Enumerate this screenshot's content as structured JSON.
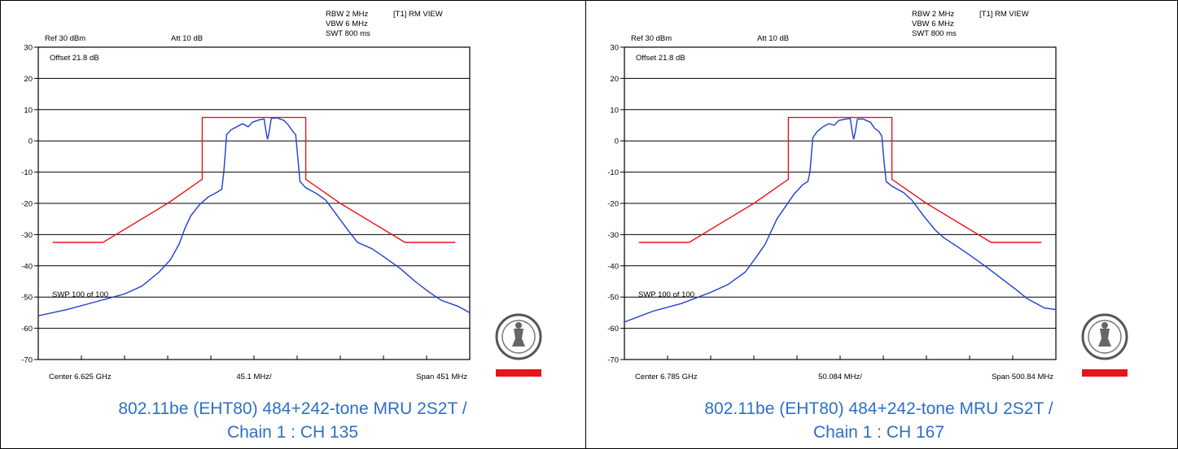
{
  "chart_data": [
    {
      "type": "line",
      "header": {
        "rbw": "RBW 2 MHz",
        "vbw": "VBW 6 MHz",
        "swt": "SWT 800 ms",
        "trace": "[T1] RM VIEW",
        "ref": "Ref 30 dBm",
        "att": "Att  10 dB",
        "offset": "Offset 21.8 dB",
        "sweep": "SWP 100 of 100"
      },
      "x_labels": {
        "left": "Center 6.625 GHz",
        "mid": "45.1 MHz/",
        "right": "Span 451 MHz"
      },
      "y_ticks": [
        "30",
        "20",
        "10",
        "0",
        "-10",
        "-20",
        "-30",
        "-40",
        "-50",
        "-60",
        "-70"
      ],
      "ylim": [
        -70,
        30
      ],
      "x_divisions": 10,
      "grid": true,
      "series": [
        {
          "color": "#e8141a",
          "points": [
            [
              0,
              -32.5
            ],
            [
              1.75,
              -32.5
            ],
            [
              4.0,
              -20.0
            ],
            [
              5.2,
              -12.3
            ],
            [
              5.2,
              7.5
            ],
            [
              8.8,
              7.5
            ],
            [
              8.8,
              -12.3
            ],
            [
              10.0,
              -20.0
            ],
            [
              12.25,
              -32.5
            ],
            [
              14.0,
              -32.5
            ]
          ]
        },
        {
          "color": "#1f3fd0",
          "points": [
            [
              0,
              -56
            ],
            [
              1.0,
              -54
            ],
            [
              2.0,
              -51.5
            ],
            [
              3.0,
              -49
            ],
            [
              3.6,
              -46.5
            ],
            [
              4.2,
              -42
            ],
            [
              4.6,
              -38
            ],
            [
              4.9,
              -33
            ],
            [
              5.1,
              -28
            ],
            [
              5.3,
              -24
            ],
            [
              5.6,
              -20.5
            ],
            [
              5.9,
              -18
            ],
            [
              6.2,
              -16.5
            ],
            [
              6.38,
              -15.5
            ],
            [
              6.45,
              -10
            ],
            [
              6.55,
              2
            ],
            [
              6.7,
              3.5
            ],
            [
              6.9,
              4.5
            ],
            [
              7.1,
              5.5
            ],
            [
              7.3,
              4.5
            ],
            [
              7.45,
              6
            ],
            [
              7.7,
              6.8
            ],
            [
              7.85,
              7
            ],
            [
              7.92,
              3
            ],
            [
              7.97,
              0.5
            ],
            [
              8.03,
              3
            ],
            [
              8.1,
              7.2
            ],
            [
              8.3,
              7.4
            ],
            [
              8.55,
              6.5
            ],
            [
              8.7,
              5
            ],
            [
              8.85,
              3
            ],
            [
              8.95,
              2
            ],
            [
              9.02,
              -5
            ],
            [
              9.1,
              -13
            ],
            [
              9.3,
              -15
            ],
            [
              9.7,
              -17
            ],
            [
              10.0,
              -19
            ],
            [
              10.4,
              -24
            ],
            [
              10.8,
              -29
            ],
            [
              11.1,
              -32.5
            ],
            [
              11.6,
              -34.5
            ],
            [
              12.0,
              -37
            ],
            [
              12.6,
              -41
            ],
            [
              13.1,
              -45
            ],
            [
              13.6,
              -48.5
            ],
            [
              14.0,
              -51
            ],
            [
              14.6,
              -53
            ],
            [
              15.0,
              -55
            ]
          ]
        }
      ],
      "xlim": [
        0,
        15
      ],
      "mask_x_offset": 0,
      "caption": [
        "802.11be (EHT80) 484+242-tone MRU 2S2T /",
        "Chain 1 : CH 135"
      ]
    },
    {
      "type": "line",
      "header": {
        "rbw": "RBW 2 MHz",
        "vbw": "VBW 6 MHz",
        "swt": "SWT 800 ms",
        "trace": "[T1] RM VIEW",
        "ref": "Ref 30 dBm",
        "att": "Att  10 dB",
        "offset": "Offset 21.8 dB",
        "sweep": "SWP 100 of 100"
      },
      "x_labels": {
        "left": "Center 6.785 GHz",
        "mid": "50.084 MHz/",
        "right": "Span 500.84 MHz"
      },
      "y_ticks": [
        "30",
        "20",
        "10",
        "0",
        "-10",
        "-20",
        "-30",
        "-40",
        "-50",
        "-60",
        "-70"
      ],
      "ylim": [
        -70,
        30
      ],
      "x_divisions": 10,
      "grid": true,
      "series": [
        {
          "color": "#e8141a",
          "points": [
            [
              0,
              -32.5
            ],
            [
              1.75,
              -32.5
            ],
            [
              4.0,
              -20.0
            ],
            [
              5.2,
              -12.3
            ],
            [
              5.2,
              7.5
            ],
            [
              8.8,
              7.5
            ],
            [
              8.8,
              -12.3
            ],
            [
              10.0,
              -20.0
            ],
            [
              12.25,
              -32.5
            ],
            [
              14.0,
              -32.5
            ]
          ]
        },
        {
          "color": "#1f3fd0",
          "points": [
            [
              0,
              -58
            ],
            [
              1.0,
              -54.5
            ],
            [
              2.0,
              -52
            ],
            [
              3.0,
              -48.5
            ],
            [
              3.6,
              -46
            ],
            [
              4.2,
              -42
            ],
            [
              4.6,
              -37
            ],
            [
              4.9,
              -33
            ],
            [
              5.1,
              -29
            ],
            [
              5.3,
              -25
            ],
            [
              5.6,
              -21
            ],
            [
              5.9,
              -17
            ],
            [
              6.2,
              -14
            ],
            [
              6.38,
              -13
            ],
            [
              6.45,
              -10
            ],
            [
              6.55,
              1
            ],
            [
              6.7,
              3
            ],
            [
              6.9,
              4.5
            ],
            [
              7.1,
              5.5
            ],
            [
              7.3,
              5
            ],
            [
              7.45,
              6.5
            ],
            [
              7.7,
              7
            ],
            [
              7.85,
              7.2
            ],
            [
              7.92,
              3
            ],
            [
              7.97,
              0.5
            ],
            [
              8.03,
              3
            ],
            [
              8.1,
              7
            ],
            [
              8.3,
              7
            ],
            [
              8.55,
              6
            ],
            [
              8.7,
              4
            ],
            [
              8.85,
              3
            ],
            [
              8.95,
              1.5
            ],
            [
              9.02,
              -6
            ],
            [
              9.1,
              -13
            ],
            [
              9.3,
              -14.5
            ],
            [
              9.7,
              -16.5
            ],
            [
              10.0,
              -19
            ],
            [
              10.4,
              -24
            ],
            [
              10.8,
              -28.5
            ],
            [
              11.1,
              -31
            ],
            [
              11.6,
              -34
            ],
            [
              12.0,
              -36.5
            ],
            [
              12.6,
              -40.5
            ],
            [
              13.1,
              -44
            ],
            [
              13.6,
              -47.5
            ],
            [
              14.0,
              -50.5
            ],
            [
              14.6,
              -53.5
            ],
            [
              15.0,
              -54
            ]
          ]
        }
      ],
      "xlim": [
        0,
        15
      ],
      "mask_x_offset": 0,
      "caption": [
        "802.11be (EHT80) 484+242-tone MRU 2S2T /",
        "Chain 1 : CH 167"
      ]
    }
  ],
  "logo": {
    "top_text": "BUREAU",
    "bottom_text": "VERITAS",
    "year": "1828",
    "brand_color": "#e8141a"
  }
}
